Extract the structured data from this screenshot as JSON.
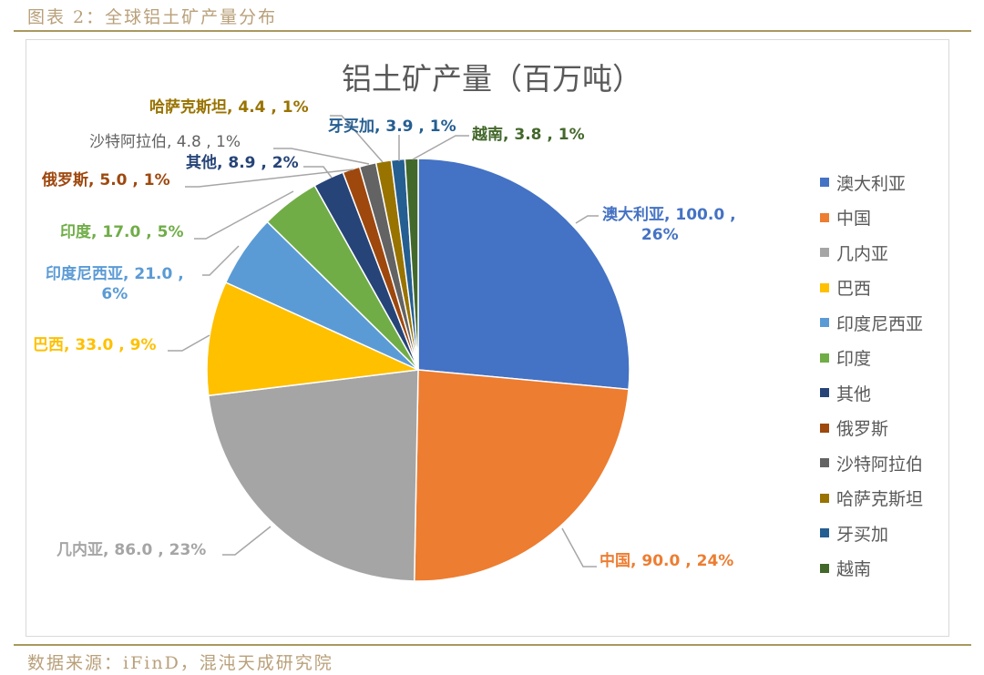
{
  "figure": {
    "caption": "图表 2：全球铝土矿产量分布",
    "source": "数据来源：iFinD，混沌天成研究院"
  },
  "chart_data": {
    "type": "pie",
    "title": "铝土矿产量（百万吨）",
    "unit": "百万吨",
    "categories": [
      "澳大利亚",
      "中国",
      "几内亚",
      "巴西",
      "印度尼西亚",
      "印度",
      "其他",
      "俄罗斯",
      "沙特阿拉伯",
      "哈萨克斯坦",
      "牙买加",
      "越南"
    ],
    "values": [
      100.0,
      90.0,
      86.0,
      33.0,
      21.0,
      17.0,
      8.9,
      5.0,
      4.8,
      4.4,
      3.9,
      3.8
    ],
    "percentages": [
      "26%",
      "24%",
      "23%",
      "9%",
      "6%",
      "5%",
      "2%",
      "1%",
      "1%",
      "1%",
      "1%",
      "1%"
    ],
    "colors": [
      "#4472c4",
      "#ed7d31",
      "#a5a5a5",
      "#ffc000",
      "#5b9bd5",
      "#70ad47",
      "#264478",
      "#9e480e",
      "#636363",
      "#997300",
      "#255e91",
      "#43682b"
    ],
    "legend_position": "right",
    "start_angle_deg": 0,
    "direction": "clockwise"
  },
  "labels": {
    "australia": {
      "line1": "澳大利亚, 100.0 ,",
      "line2": "26%"
    },
    "china": "中国, 90.0 , 24%",
    "guinea": "几内亚, 86.0 , 23%",
    "brazil": "巴西, 33.0 , 9%",
    "indonesia": {
      "line1": "印度尼西亚, 21.0 ,",
      "line2": "6%"
    },
    "india": "印度, 17.0 , 5%",
    "others": "其他, 8.9 , 2%",
    "russia": "俄罗斯, 5.0 , 1%",
    "saudi": "沙特阿拉伯, 4.8 , 1%",
    "kazakhstan": "哈萨克斯坦, 4.4 , 1%",
    "jamaica": "牙买加, 3.9 , 1%",
    "vietnam": "越南, 3.8 , 1%"
  },
  "legend": [
    {
      "label": "澳大利亚",
      "color": "#4472c4"
    },
    {
      "label": "中国",
      "color": "#ed7d31"
    },
    {
      "label": "几内亚",
      "color": "#a5a5a5"
    },
    {
      "label": "巴西",
      "color": "#ffc000"
    },
    {
      "label": "印度尼西亚",
      "color": "#5b9bd5"
    },
    {
      "label": "印度",
      "color": "#70ad47"
    },
    {
      "label": "其他",
      "color": "#264478"
    },
    {
      "label": "俄罗斯",
      "color": "#9e480e"
    },
    {
      "label": "沙特阿拉伯",
      "color": "#636363"
    },
    {
      "label": "哈萨克斯坦",
      "color": "#997300"
    },
    {
      "label": "牙买加",
      "color": "#255e91"
    },
    {
      "label": "越南",
      "color": "#43682b"
    }
  ]
}
